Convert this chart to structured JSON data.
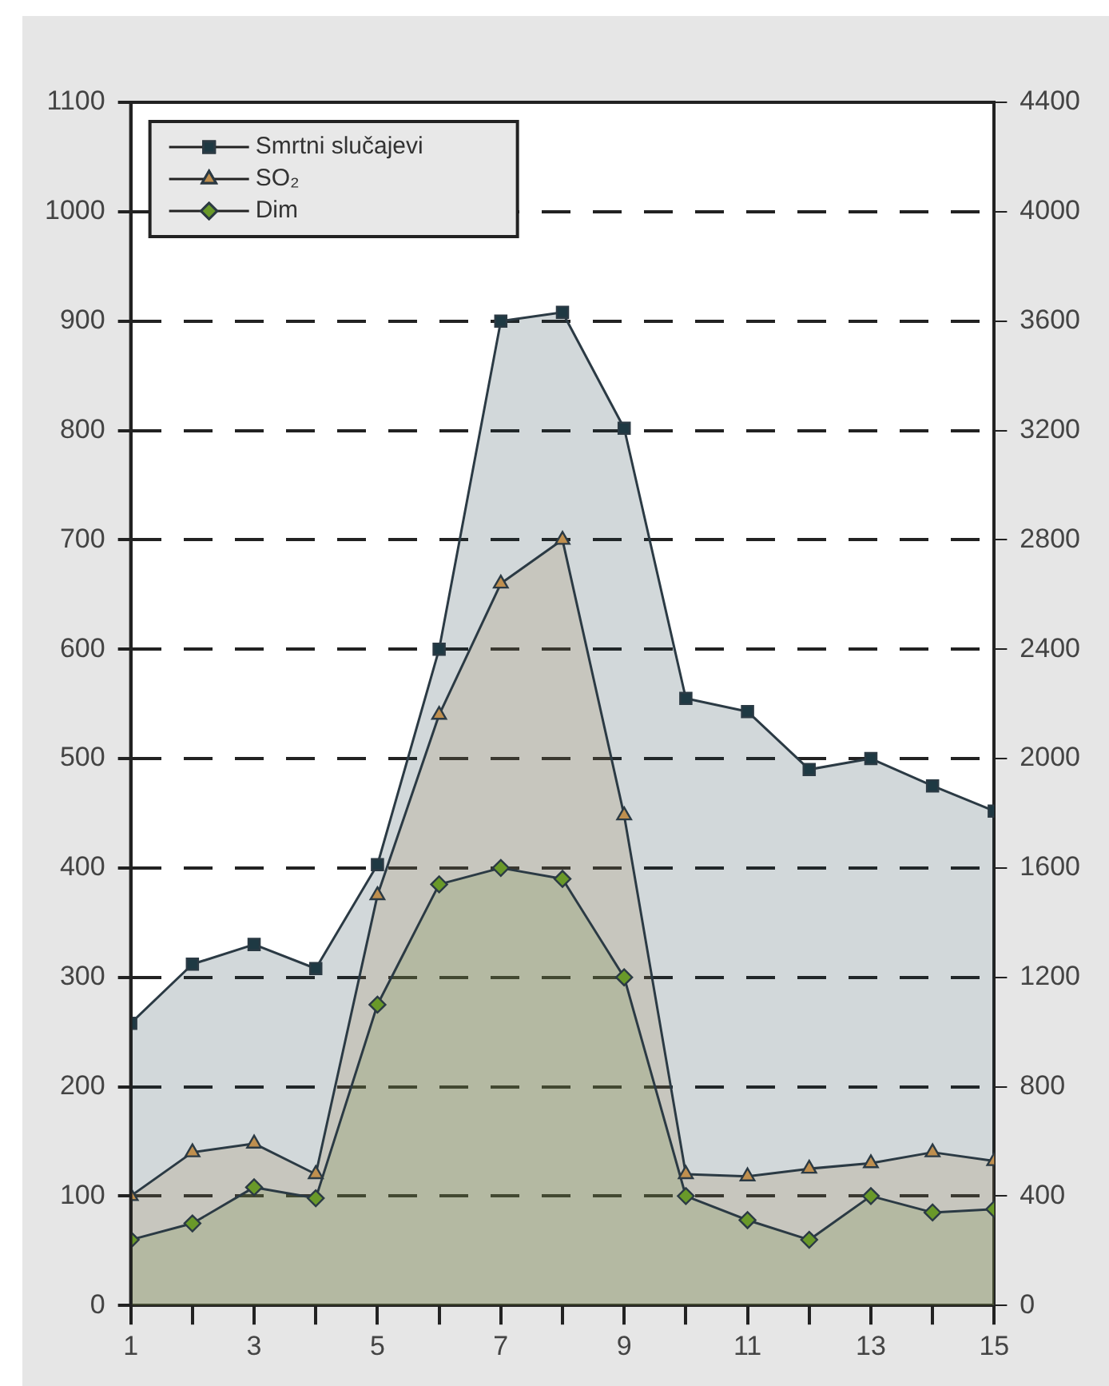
{
  "chart_data": {
    "type": "area",
    "x": [
      1,
      2,
      3,
      4,
      5,
      6,
      7,
      8,
      9,
      10,
      11,
      12,
      13,
      14,
      15
    ],
    "series": [
      {
        "name": "Smrtni slučajevi",
        "color": "#1f3a44",
        "marker": "square",
        "values": [
          258,
          312,
          330,
          308,
          403,
          600,
          900,
          908,
          802,
          555,
          543,
          490,
          500,
          475,
          452
        ]
      },
      {
        "name": "SO₂",
        "color": "#c09050",
        "marker": "triangle",
        "values": [
          100,
          140,
          148,
          120,
          375,
          540,
          660,
          700,
          448,
          120,
          118,
          125,
          130,
          140,
          132
        ]
      },
      {
        "name": "Dim",
        "color": "#6a9a2a",
        "marker": "diamond",
        "values": [
          60,
          75,
          108,
          98,
          275,
          385,
          400,
          390,
          300,
          100,
          78,
          60,
          100,
          85,
          88
        ]
      }
    ],
    "xlim": [
      1,
      15
    ],
    "xticks": [
      1,
      {
        "value": 2,
        "label": null
      },
      3,
      {
        "value": 4,
        "label": null
      },
      5,
      {
        "value": 6,
        "label": null
      },
      7,
      {
        "value": 8,
        "label": null
      },
      9,
      {
        "value": 10,
        "label": null
      },
      11,
      {
        "value": 12,
        "label": null
      },
      13,
      {
        "value": 14,
        "label": null
      },
      15
    ],
    "ylim": [
      0,
      1100
    ],
    "yticks": [
      0,
      100,
      200,
      300,
      400,
      500,
      600,
      700,
      800,
      900,
      1000,
      1100
    ],
    "y2lim": [
      0,
      4400
    ],
    "y2ticks": [
      0,
      400,
      800,
      1200,
      1600,
      2000,
      2400,
      2800,
      3200,
      3600,
      4000,
      4400
    ],
    "grid": "y",
    "legend": "top left"
  }
}
